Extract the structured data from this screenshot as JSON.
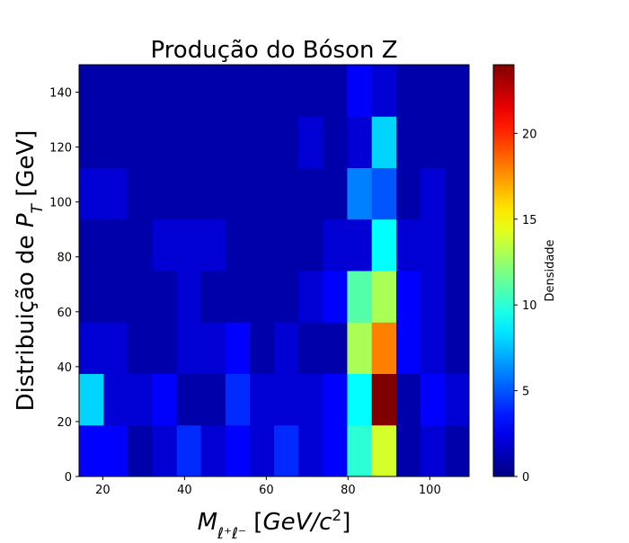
{
  "chart_data": {
    "type": "heatmap",
    "title": "Produção do Bóson Z",
    "xlabel": {
      "parts": [
        {
          "text": "M",
          "italic": true
        },
        {
          "text": "ℓ⁺ℓ⁻",
          "italic": true,
          "sub": true
        },
        {
          "text": " [",
          "italic": false
        },
        {
          "text": "GeV/c",
          "italic": true
        },
        {
          "text": "2",
          "italic": false,
          "sup": true
        },
        {
          "text": "]",
          "italic": false
        }
      ]
    },
    "ylabel": {
      "parts": [
        {
          "text": "Distribuição de ",
          "italic": false
        },
        {
          "text": "P",
          "italic": true
        },
        {
          "text": "T",
          "italic": true,
          "sub": true
        },
        {
          "text": " [GeV]",
          "italic": false
        }
      ]
    },
    "colorbar_label": "Densidade",
    "xlim": [
      14.2,
      109.6
    ],
    "ylim": [
      0,
      150
    ],
    "x_ticks": [
      20,
      40,
      60,
      80,
      100
    ],
    "y_ticks": [
      0,
      20,
      40,
      60,
      80,
      100,
      120,
      140
    ],
    "colorbar_ticks": [
      0,
      5,
      10,
      15,
      20
    ],
    "value_range": [
      0,
      24
    ],
    "colormap": "jet",
    "x_edges": [
      14.2,
      20.2,
      26.1,
      32.1,
      38.1,
      44.0,
      50.0,
      56.0,
      61.9,
      67.9,
      73.9,
      79.8,
      85.8,
      91.8,
      97.7,
      103.7,
      109.6
    ],
    "y_edges": [
      0,
      18.75,
      37.5,
      56.25,
      75,
      93.75,
      112.5,
      131.25,
      150
    ],
    "values": [
      [
        3,
        3,
        1,
        2,
        4,
        2,
        3,
        2,
        4,
        2,
        3,
        10,
        14,
        1,
        2,
        1
      ],
      [
        8,
        2,
        2,
        3,
        1,
        1,
        4,
        2,
        2,
        2,
        3,
        9,
        24,
        1,
        3,
        2
      ],
      [
        2,
        2,
        1,
        1,
        2,
        2,
        3,
        1,
        2,
        1,
        1,
        13,
        18,
        3,
        2,
        1
      ],
      [
        1,
        1,
        1,
        1,
        2,
        1,
        1,
        1,
        1,
        2,
        3,
        11,
        13,
        3,
        2,
        1
      ],
      [
        1,
        1,
        1,
        2,
        2,
        2,
        1,
        1,
        1,
        1,
        2,
        2,
        9,
        2,
        2,
        1
      ],
      [
        2,
        2,
        1,
        1,
        1,
        1,
        1,
        1,
        1,
        1,
        1,
        6,
        5,
        1,
        2,
        1
      ],
      [
        1,
        1,
        1,
        1,
        1,
        1,
        1,
        1,
        1,
        2,
        1,
        2,
        8,
        1,
        1,
        1
      ],
      [
        1,
        1,
        1,
        1,
        1,
        1,
        1,
        1,
        1,
        1,
        1,
        3,
        2,
        1,
        1,
        1
      ]
    ]
  }
}
